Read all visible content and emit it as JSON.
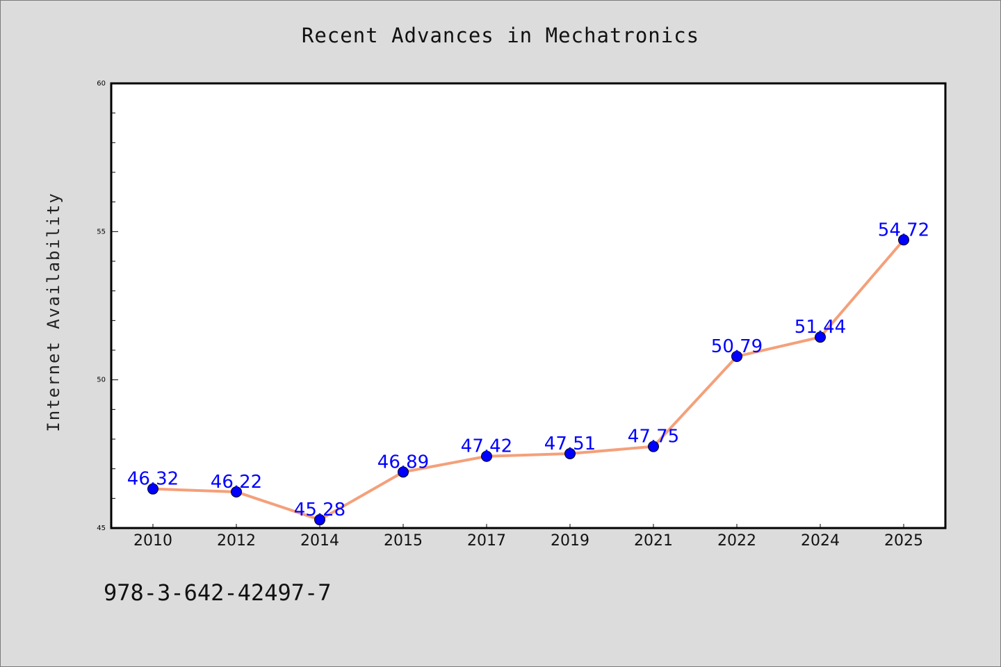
{
  "chart_data": {
    "type": "line",
    "title": "Recent Advances in Mechatronics",
    "xlabel": "",
    "ylabel": "Internet Availability",
    "categories": [
      "2010",
      "2012",
      "2014",
      "2015",
      "2017",
      "2019",
      "2021",
      "2022",
      "2024",
      "2025"
    ],
    "series": [
      {
        "values": [
          46.32,
          46.22,
          45.28,
          46.89,
          47.42,
          47.51,
          47.75,
          50.79,
          51.44,
          54.72
        ]
      }
    ],
    "data_labels": [
      "46.32",
      "46.22",
      "45.28",
      "46.89",
      "47.42",
      "47.51",
      "47.75",
      "50.79",
      "51.44",
      "54.72"
    ],
    "ylim": [
      45,
      60
    ],
    "y_tick_labels": [
      "45",
      "50",
      "55",
      "60"
    ],
    "grid": false,
    "colors": {
      "line": "#f4a07a",
      "marker": "#0000ff",
      "label": "#0000ff",
      "background": "#dcdcdc",
      "plot": "#ffffff"
    }
  },
  "footer": {
    "isbn": "978-3-642-42497-7"
  }
}
